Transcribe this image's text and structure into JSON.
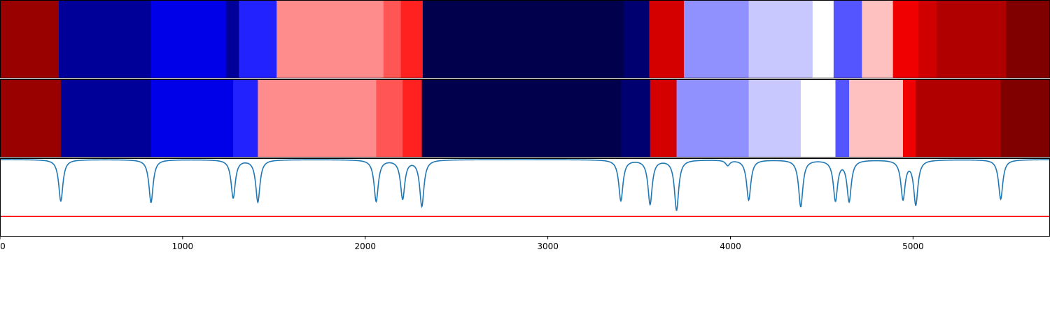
{
  "chart_data": {
    "type": "heatmap",
    "xlim": [
      0,
      5750
    ],
    "x_ticks": [
      {
        "value": 0,
        "label": "0"
      },
      {
        "value": 1000,
        "label": "1000"
      },
      {
        "value": 2000,
        "label": "2000"
      },
      {
        "value": 3000,
        "label": "3000"
      },
      {
        "value": 4000,
        "label": "4000"
      },
      {
        "value": 5000,
        "label": "5000"
      }
    ],
    "rows": [
      {
        "name": "",
        "segments": [
          {
            "start": 0,
            "end": 322,
            "color": "#990000"
          },
          {
            "start": 322,
            "end": 827,
            "color": "#000099"
          },
          {
            "start": 827,
            "end": 1237,
            "color": "#0000e8"
          },
          {
            "start": 1237,
            "end": 1308,
            "color": "#000099"
          },
          {
            "start": 1308,
            "end": 1515,
            "color": "#2222ff"
          },
          {
            "start": 1515,
            "end": 2100,
            "color": "#ff8c8c"
          },
          {
            "start": 2100,
            "end": 2195,
            "color": "#ff5555"
          },
          {
            "start": 2195,
            "end": 2315,
            "color": "#ff2020"
          },
          {
            "start": 2315,
            "end": 3415,
            "color": "#00004c"
          },
          {
            "start": 3415,
            "end": 3555,
            "color": "#000070"
          },
          {
            "start": 3555,
            "end": 3745,
            "color": "#d40000"
          },
          {
            "start": 3745,
            "end": 4100,
            "color": "#9090ff"
          },
          {
            "start": 4100,
            "end": 4450,
            "color": "#c8c8ff"
          },
          {
            "start": 4450,
            "end": 4565,
            "color": "#ffffff"
          },
          {
            "start": 4565,
            "end": 4720,
            "color": "#5555ff"
          },
          {
            "start": 4720,
            "end": 4890,
            "color": "#ffc0c0"
          },
          {
            "start": 4890,
            "end": 5030,
            "color": "#f00000"
          },
          {
            "start": 5030,
            "end": 5130,
            "color": "#d00000"
          },
          {
            "start": 5130,
            "end": 5510,
            "color": "#b00000"
          },
          {
            "start": 5510,
            "end": 5750,
            "color": "#800000"
          }
        ]
      },
      {
        "name": "",
        "segments": [
          {
            "start": 0,
            "end": 333,
            "color": "#990000"
          },
          {
            "start": 333,
            "end": 827,
            "color": "#000099"
          },
          {
            "start": 827,
            "end": 1277,
            "color": "#0000e8"
          },
          {
            "start": 1277,
            "end": 1412,
            "color": "#2222ff"
          },
          {
            "start": 1412,
            "end": 2060,
            "color": "#ff8c8c"
          },
          {
            "start": 2060,
            "end": 2205,
            "color": "#ff5555"
          },
          {
            "start": 2205,
            "end": 2310,
            "color": "#ff2020"
          },
          {
            "start": 2310,
            "end": 3400,
            "color": "#00004c"
          },
          {
            "start": 3400,
            "end": 3560,
            "color": "#000070"
          },
          {
            "start": 3560,
            "end": 3705,
            "color": "#d40000"
          },
          {
            "start": 3705,
            "end": 4100,
            "color": "#9090ff"
          },
          {
            "start": 4100,
            "end": 4385,
            "color": "#c8c8ff"
          },
          {
            "start": 4385,
            "end": 4575,
            "color": "#ffffff"
          },
          {
            "start": 4575,
            "end": 4650,
            "color": "#5555ff"
          },
          {
            "start": 4650,
            "end": 4945,
            "color": "#ffc0c0"
          },
          {
            "start": 4945,
            "end": 5015,
            "color": "#f00000"
          },
          {
            "start": 5015,
            "end": 5480,
            "color": "#b00000"
          },
          {
            "start": 5480,
            "end": 5750,
            "color": "#800000"
          }
        ]
      }
    ],
    "curve": {
      "name": "",
      "color": "#1f77b4",
      "ylim": [
        -1.15,
        0.02
      ],
      "baseline": 0,
      "dips": [
        {
          "x": 333,
          "depth": 0.62
        },
        {
          "x": 827,
          "depth": 0.64
        },
        {
          "x": 1277,
          "depth": 0.57
        },
        {
          "x": 1412,
          "depth": 0.63
        },
        {
          "x": 2060,
          "depth": 0.62
        },
        {
          "x": 2205,
          "depth": 0.58
        },
        {
          "x": 2310,
          "depth": 0.69
        },
        {
          "x": 3400,
          "depth": 0.61
        },
        {
          "x": 3560,
          "depth": 0.66
        },
        {
          "x": 3705,
          "depth": 0.75
        },
        {
          "x": 3985,
          "depth": 0.08
        },
        {
          "x": 4100,
          "depth": 0.6
        },
        {
          "x": 4385,
          "depth": 0.7
        },
        {
          "x": 4575,
          "depth": 0.6
        },
        {
          "x": 4650,
          "depth": 0.61
        },
        {
          "x": 4945,
          "depth": 0.58
        },
        {
          "x": 5015,
          "depth": 0.66
        },
        {
          "x": 5480,
          "depth": 0.59
        }
      ]
    },
    "threshold": {
      "y": -0.85,
      "color": "#ff0000"
    }
  }
}
